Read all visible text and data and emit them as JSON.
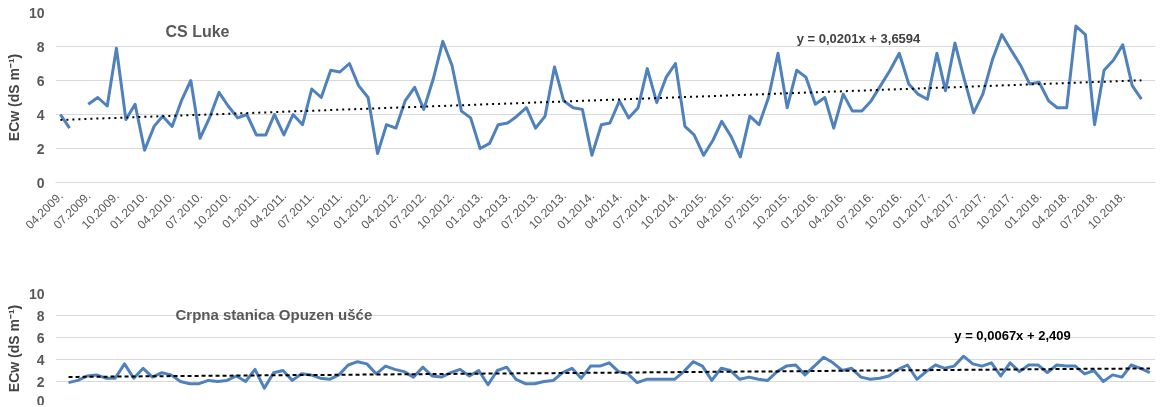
{
  "chart_data": [
    {
      "type": "line",
      "title": "CS Luke",
      "ylabel": "ECw (dS m⁻¹)",
      "grid": "y",
      "marker": "none",
      "x": [
        "2009-04",
        "2009-05",
        "2009-06",
        "2009-07",
        "2009-08",
        "2009-09",
        "2009-10",
        "2009-11",
        "2009-12",
        "2010-01",
        "2010-02",
        "2010-03",
        "2010-04",
        "2010-05",
        "2010-06",
        "2010-07",
        "2010-08",
        "2010-09",
        "2010-10",
        "2010-11",
        "2010-12",
        "2011-01",
        "2011-02",
        "2011-03",
        "2011-04",
        "2011-05",
        "2011-06",
        "2011-07",
        "2011-08",
        "2011-09",
        "2011-10",
        "2011-11",
        "2011-12",
        "2012-01",
        "2012-02",
        "2012-03",
        "2012-04",
        "2012-05",
        "2012-06",
        "2012-07",
        "2012-08",
        "2012-09",
        "2012-10",
        "2012-11",
        "2012-12",
        "2013-01",
        "2013-02",
        "2013-03",
        "2013-04",
        "2013-05",
        "2013-06",
        "2013-07",
        "2013-08",
        "2013-09",
        "2013-10",
        "2013-11",
        "2013-12",
        "2014-01",
        "2014-02",
        "2014-03",
        "2014-04",
        "2014-05",
        "2014-06",
        "2014-07",
        "2014-08",
        "2014-09",
        "2014-10",
        "2014-11",
        "2014-12",
        "2015-01",
        "2015-02",
        "2015-03",
        "2015-04",
        "2015-05",
        "2015-06",
        "2015-07",
        "2015-08",
        "2015-09",
        "2015-10",
        "2015-11",
        "2015-12",
        "2016-01",
        "2016-02",
        "2016-03",
        "2016-04",
        "2016-05",
        "2016-06",
        "2016-07",
        "2016-08",
        "2016-09",
        "2016-10",
        "2016-11",
        "2016-12",
        "2017-01",
        "2017-02",
        "2017-03",
        "2017-04",
        "2017-05",
        "2017-06",
        "2017-07",
        "2017-08",
        "2017-09",
        "2017-10",
        "2017-11",
        "2017-12",
        "2018-01",
        "2018-02",
        "2018-03",
        "2018-04",
        "2018-05",
        "2018-06",
        "2018-07",
        "2018-08",
        "2018-09",
        "2018-10",
        "2018-11",
        "2018-12"
      ],
      "xlim": [
        "2009-03-16",
        "2019-01-16"
      ],
      "xticks": [
        {
          "value": "2009-04",
          "label": "04.2009."
        },
        {
          "value": "2009-07",
          "label": "07.2009."
        },
        {
          "value": "2009-10",
          "label": "10.2009."
        },
        {
          "value": "2010-01",
          "label": "01.2010."
        },
        {
          "value": "2010-04",
          "label": "04.2010."
        },
        {
          "value": "2010-07",
          "label": "07.2010."
        },
        {
          "value": "2010-10",
          "label": "10.2010."
        },
        {
          "value": "2011-01",
          "label": "01.2011."
        },
        {
          "value": "2011-04",
          "label": "04.2011."
        },
        {
          "value": "2011-07",
          "label": "07.2011."
        },
        {
          "value": "2011-10",
          "label": "10.2011."
        },
        {
          "value": "2012-01",
          "label": "01.2012."
        },
        {
          "value": "2012-04",
          "label": "04.2012."
        },
        {
          "value": "2012-07",
          "label": "07.2012."
        },
        {
          "value": "2012-10",
          "label": "10.2012."
        },
        {
          "value": "2013-01",
          "label": "01.2013."
        },
        {
          "value": "2013-04",
          "label": "04.2013."
        },
        {
          "value": "2013-07",
          "label": "07.2013."
        },
        {
          "value": "2013-10",
          "label": "10.2013."
        },
        {
          "value": "2014-01",
          "label": "01.2014."
        },
        {
          "value": "2014-04",
          "label": "04.2014."
        },
        {
          "value": "2014-07",
          "label": "07.2014."
        },
        {
          "value": "2014-10",
          "label": "10.2014."
        },
        {
          "value": "2015-01",
          "label": "01.2015."
        },
        {
          "value": "2015-04",
          "label": "04.2015."
        },
        {
          "value": "2015-07",
          "label": "07.2015."
        },
        {
          "value": "2015-10",
          "label": "10.2015."
        },
        {
          "value": "2016-01",
          "label": "01.2016."
        },
        {
          "value": "2016-04",
          "label": "04.2016."
        },
        {
          "value": "2016-07",
          "label": "07.2016."
        },
        {
          "value": "2016-10",
          "label": "10.2016."
        },
        {
          "value": "2017-01",
          "label": "01.2017."
        },
        {
          "value": "2017-04",
          "label": "04.2017."
        },
        {
          "value": "2017-07",
          "label": "07.2017."
        },
        {
          "value": "2017-10",
          "label": "10.2017."
        },
        {
          "value": "2018-01",
          "label": "01.2018."
        },
        {
          "value": "2018-04",
          "label": "04.2018."
        },
        {
          "value": "2018-07",
          "label": "07.2018."
        },
        {
          "value": "2018-10",
          "label": "10.2018."
        }
      ],
      "ylim": [
        0,
        10
      ],
      "yticks": [
        0,
        2,
        4,
        6,
        8,
        10
      ],
      "series": [
        {
          "color": "#4f81bd",
          "values": [
            4.0,
            3.2,
            null,
            4.6,
            5.0,
            4.5,
            7.9,
            3.7,
            4.6,
            1.9,
            3.3,
            3.9,
            3.3,
            4.8,
            6.0,
            2.6,
            3.8,
            5.3,
            4.5,
            3.8,
            4.0,
            2.8,
            2.8,
            4.0,
            2.8,
            4.0,
            3.4,
            5.5,
            5.0,
            6.6,
            6.5,
            7.0,
            5.7,
            5.0,
            1.7,
            3.4,
            3.2,
            4.8,
            5.6,
            4.3,
            6.1,
            8.3,
            6.9,
            4.2,
            3.8,
            2.0,
            2.3,
            3.4,
            3.5,
            3.9,
            4.4,
            3.2,
            3.9,
            6.8,
            4.8,
            4.4,
            4.3,
            1.6,
            3.4,
            3.5,
            4.8,
            3.8,
            4.4,
            6.7,
            4.7,
            6.2,
            7.0,
            3.3,
            2.8,
            1.6,
            2.5,
            3.6,
            2.7,
            1.5,
            3.9,
            3.4,
            5.0,
            7.6,
            4.4,
            6.6,
            6.2,
            4.6,
            5.0,
            3.2,
            5.2,
            4.2,
            4.2,
            4.8,
            5.7,
            6.6,
            7.6,
            5.8,
            5.2,
            4.9,
            7.6,
            5.4,
            8.2,
            6.1,
            4.1,
            5.2,
            7.2,
            8.7,
            7.8,
            6.9,
            5.8,
            5.9,
            4.8,
            4.4,
            4.4,
            9.2,
            8.7,
            3.4,
            6.6,
            7.2,
            8.1,
            5.7,
            4.9
          ]
        },
        {
          "type": "line",
          "color": "#000000",
          "line_style": "dotted",
          "x": [
            "2009-04",
            "2018-12"
          ],
          "values": [
            3.68,
            6.01
          ]
        }
      ],
      "annotations": [
        "y = 0,0201x + 3,6594"
      ]
    },
    {
      "type": "line",
      "title": "Crpna stanica Opuzen ušće",
      "ylabel": "ECw (dS m⁻¹)",
      "grid": "y",
      "marker": "none",
      "tick_labels": "y",
      "categories": [
        null,
        null,
        null,
        null,
        null,
        null,
        null,
        null,
        null,
        null,
        null,
        null,
        null,
        null,
        null,
        null,
        null,
        null,
        null,
        null,
        null,
        null,
        null,
        null,
        null,
        null,
        null,
        null,
        null,
        null,
        null,
        null,
        null,
        null,
        null,
        null,
        null,
        null,
        null,
        null,
        null,
        null,
        null,
        null,
        null,
        null,
        null,
        null,
        null,
        null,
        null,
        null,
        null,
        null,
        null,
        null,
        null,
        null,
        null,
        null,
        null,
        null,
        null,
        null,
        null,
        null,
        null,
        null,
        null,
        null,
        null,
        null,
        null,
        null,
        null,
        null,
        null,
        null,
        null,
        null,
        null,
        null,
        null,
        null,
        null,
        null,
        null,
        null,
        null,
        null,
        null,
        null,
        null,
        null,
        null,
        null,
        null,
        null,
        null,
        null,
        null,
        null,
        null,
        null,
        null,
        null,
        null,
        null,
        null,
        null,
        null,
        null,
        null,
        null,
        null,
        null,
        null
      ],
      "ylim": [
        0,
        10
      ],
      "yticks": [
        0,
        2,
        4,
        6,
        8,
        10
      ],
      "series": [
        {
          "color": "#4f81bd",
          "values": [
            1.9,
            2.1,
            2.5,
            2.6,
            2.3,
            2.3,
            3.6,
            2.3,
            3.2,
            2.4,
            2.8,
            2.6,
            2.0,
            1.8,
            1.8,
            2.1,
            2.0,
            2.1,
            2.5,
            2.0,
            3.1,
            1.4,
            2.8,
            3.0,
            2.1,
            2.7,
            2.6,
            2.3,
            2.2,
            2.6,
            3.5,
            3.8,
            3.6,
            2.7,
            3.4,
            3.1,
            2.9,
            2.4,
            3.3,
            2.5,
            2.4,
            2.8,
            3.1,
            2.5,
            3.0,
            1.7,
            3.0,
            3.3,
            2.2,
            1.8,
            1.8,
            2.0,
            2.1,
            2.8,
            3.2,
            2.3,
            3.4,
            3.4,
            3.7,
            2.9,
            2.7,
            1.9,
            2.2,
            2.2,
            2.2,
            2.2,
            2.9,
            3.8,
            3.4,
            2.1,
            3.2,
            3.0,
            2.2,
            2.4,
            2.2,
            2.1,
            2.9,
            3.4,
            3.5,
            2.6,
            3.4,
            4.2,
            3.7,
            3.0,
            3.2,
            2.4,
            2.2,
            2.3,
            2.5,
            3.1,
            3.5,
            2.2,
            2.9,
            3.5,
            3.2,
            3.4,
            4.3,
            3.6,
            3.4,
            3.7,
            2.5,
            3.7,
            2.9,
            3.5,
            3.5,
            2.8,
            3.5,
            3.4,
            3.4,
            2.7,
            3.0,
            2.0,
            2.6,
            2.4,
            3.5,
            3.2,
            2.8
          ]
        },
        {
          "type": "line",
          "color": "#000000",
          "line_style": "dashed",
          "values": [
            2.42,
            2.42,
            2.43,
            2.44,
            2.44,
            2.45,
            2.46,
            2.46,
            2.47,
            2.48,
            2.48,
            2.49,
            2.5,
            2.5,
            2.51,
            2.52,
            2.52,
            2.53,
            2.54,
            2.54,
            2.55,
            2.56,
            2.56,
            2.57,
            2.58,
            2.58,
            2.59,
            2.6,
            2.6,
            2.61,
            2.62,
            2.62,
            2.63,
            2.64,
            2.64,
            2.65,
            2.66,
            2.66,
            2.67,
            2.68,
            2.68,
            2.69,
            2.7,
            2.7,
            2.71,
            2.72,
            2.72,
            2.73,
            2.74,
            2.74,
            2.75,
            2.76,
            2.76,
            2.77,
            2.78,
            2.78,
            2.79,
            2.8,
            2.8,
            2.81,
            2.82,
            2.82,
            2.83,
            2.84,
            2.84,
            2.85,
            2.86,
            2.86,
            2.87,
            2.88,
            2.88,
            2.89,
            2.9,
            2.9,
            2.91,
            2.92,
            2.92,
            2.93,
            2.94,
            2.94,
            2.95,
            2.96,
            2.97,
            2.97,
            2.98,
            2.99,
            2.99,
            3.0,
            3.01,
            3.01,
            3.02,
            3.03,
            3.03,
            3.04,
            3.05,
            3.05,
            3.06,
            3.07,
            3.07,
            3.08,
            3.09,
            3.09,
            3.1,
            3.11,
            3.11,
            3.12,
            3.13,
            3.13,
            3.14,
            3.15,
            3.15,
            3.16,
            3.17,
            3.17,
            3.18,
            3.19,
            3.19
          ]
        }
      ],
      "annotations": [
        "y = 0,0067x + 2,409"
      ]
    }
  ]
}
